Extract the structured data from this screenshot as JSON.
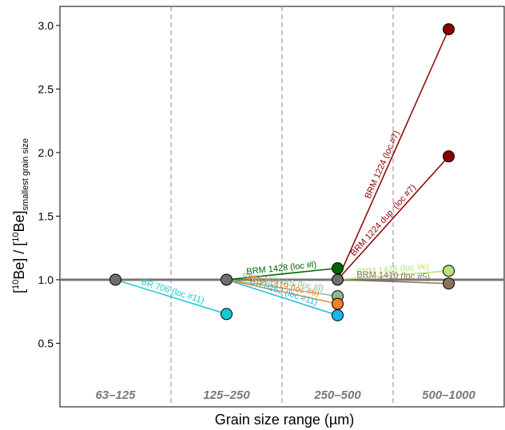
{
  "chart_data": {
    "type": "scatter",
    "xlabel": "Grain size range (µm)",
    "ylabel": {
      "pre": "[",
      "sup1": "10",
      "mid1": "Be] / [",
      "sup2": "10",
      "mid2": "Be]",
      "sub": "smallest grain size"
    },
    "categories": [
      "63–125",
      "125–250",
      "250–500",
      "500–1000"
    ],
    "ylim": [
      0.0,
      3.15
    ],
    "yticks": [
      "0.5",
      "1.0",
      "1.5",
      "2.0",
      "2.5",
      "3.0"
    ],
    "ytick_values": [
      0.5,
      1.0,
      1.5,
      2.0,
      2.5,
      3.0
    ],
    "reference_line": 1.0,
    "series": [
      {
        "name": "BR 706 (loc #11)",
        "color": "#17c9d6",
        "points": [
          {
            "x": "63–125",
            "y": 1.0
          },
          {
            "x": "125–250",
            "y": 0.73
          }
        ]
      },
      {
        "name": "BRM 1428 (loc #l)",
        "color": "#006400",
        "points": [
          {
            "x": "125–250",
            "y": 1.0
          },
          {
            "x": "250–500",
            "y": 1.09
          }
        ]
      },
      {
        "name": "BR 8262 (loc #11)",
        "color": "#1ab8ea",
        "points": [
          {
            "x": "125–250",
            "y": 1.0
          },
          {
            "x": "250–500",
            "y": 0.72
          }
        ]
      },
      {
        "name": "BRM MANAS (loc #l)",
        "color": "#8fbc8f",
        "points": [
          {
            "x": "125–250",
            "y": 1.0
          },
          {
            "x": "250–500",
            "y": 0.87
          }
        ]
      },
      {
        "name": "BRM 1419 (loc #6)",
        "color": "#f47f2a",
        "points": [
          {
            "x": "125–250",
            "y": 1.0
          },
          {
            "x": "250–500",
            "y": 0.81
          }
        ]
      },
      {
        "name": "BRM 1224 (loc #7)",
        "color": "#8b0000",
        "points": [
          {
            "x": "250–500",
            "y": 1.0
          },
          {
            "x": "500–1000",
            "y": 2.97
          }
        ]
      },
      {
        "name": "BRM 1224 dup. (loc #7)",
        "color": "#8b0000",
        "points": [
          {
            "x": "250–500",
            "y": 1.0
          },
          {
            "x": "500–1000",
            "y": 1.97
          }
        ]
      },
      {
        "name": "BRM 1425 (loc #k)",
        "color": "#b5e27a",
        "points": [
          {
            "x": "250–500",
            "y": 1.0
          },
          {
            "x": "500–1000",
            "y": 1.07
          }
        ]
      },
      {
        "name": "BRM 1410 (loc #5)",
        "color": "#8b7355",
        "points": [
          {
            "x": "250–500",
            "y": 1.0
          },
          {
            "x": "500–1000",
            "y": 0.97
          }
        ]
      }
    ],
    "reference_points": [
      {
        "x": "63–125",
        "y": 1.0
      },
      {
        "x": "125–250",
        "y": 1.0
      },
      {
        "x": "250–500",
        "y": 1.0
      }
    ],
    "grid": false
  }
}
